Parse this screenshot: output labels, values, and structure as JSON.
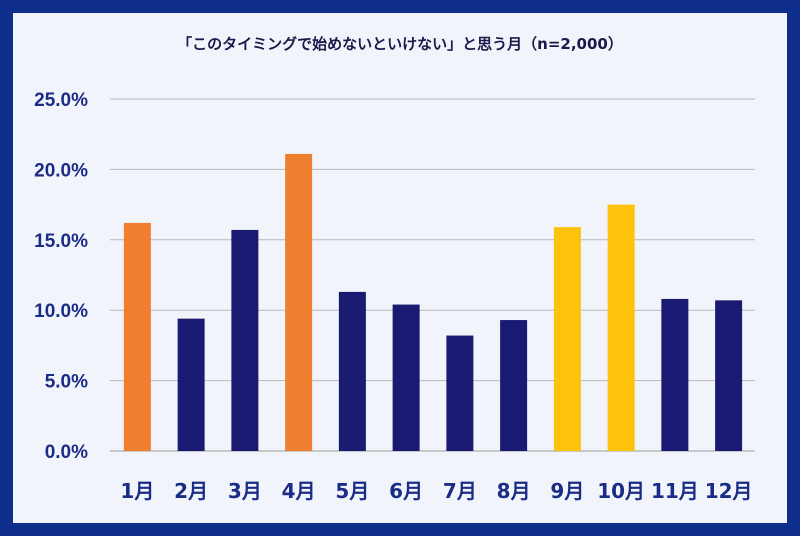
{
  "chart_data": {
    "type": "bar",
    "title": "「このタイミングで始めないといけない」と思う月（n=2,000）",
    "xlabel": "",
    "ylabel": "",
    "categories": [
      "1月",
      "2月",
      "3月",
      "4月",
      "5月",
      "6月",
      "7月",
      "8月",
      "9月",
      "10月",
      "11月",
      "12月"
    ],
    "values": [
      16.2,
      9.4,
      15.7,
      21.1,
      11.3,
      10.4,
      8.2,
      9.3,
      15.9,
      17.5,
      10.8,
      10.7
    ],
    "bar_colors": [
      "#ef7f2e",
      "#1a1a72",
      "#1a1a72",
      "#ef7f2e",
      "#1a1a72",
      "#1a1a72",
      "#1a1a72",
      "#1a1a72",
      "#fdc20a",
      "#fdc20a",
      "#1a1a72",
      "#1a1a72"
    ],
    "ylim": [
      0,
      25
    ],
    "yticks": [
      "0.0%",
      "5.0%",
      "10.0%",
      "15.0%",
      "20.0%",
      "25.0%"
    ],
    "grid": true,
    "legend": "none"
  }
}
